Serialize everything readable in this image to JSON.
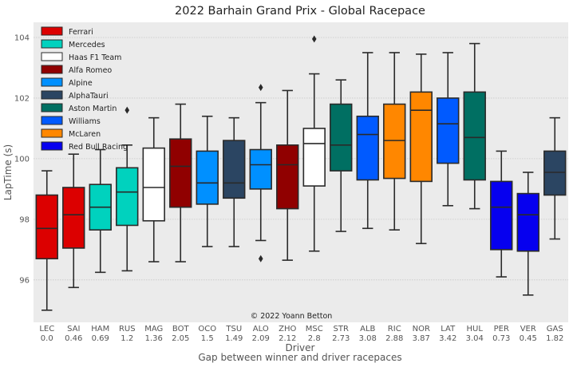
{
  "chart_data": {
    "type": "box",
    "title": "2022 Barhain Grand Prix - Global Racepace",
    "xlabel": "Driver",
    "xlabel_sub": "Gap between winner and driver racepaces",
    "ylabel": "LapTime (s)",
    "ylim": [
      94.6,
      104.5
    ],
    "yticks": [
      96,
      98,
      100,
      102,
      104
    ],
    "grid": true,
    "legend_placement": "top-left",
    "annotation": "© 2022 Yoann Betton",
    "teams": [
      {
        "name": "Ferrari",
        "color": "#DC0000"
      },
      {
        "name": "Mercedes",
        "color": "#00D2BE"
      },
      {
        "name": "Haas F1 Team",
        "color": "#FFFFFF"
      },
      {
        "name": "Alfa Romeo",
        "color": "#900000"
      },
      {
        "name": "Alpine",
        "color": "#0090FF"
      },
      {
        "name": "AlphaTauri",
        "color": "#2B4562"
      },
      {
        "name": "Aston Martin",
        "color": "#006F62"
      },
      {
        "name": "Williams",
        "color": "#005AFF"
      },
      {
        "name": "McLaren",
        "color": "#FF8700"
      },
      {
        "name": "Red Bull Racing",
        "color": "#0600EF"
      }
    ],
    "drivers": [
      {
        "code": "LEC",
        "gap": "0.0",
        "team": "Ferrari",
        "min": 95.0,
        "q1": 96.7,
        "median": 97.7,
        "q3": 98.8,
        "max": 99.6,
        "outliers": []
      },
      {
        "code": "SAI",
        "gap": "0.46",
        "team": "Ferrari",
        "min": 95.75,
        "q1": 97.05,
        "median": 98.15,
        "q3": 99.05,
        "max": 100.15,
        "outliers": []
      },
      {
        "code": "HAM",
        "gap": "0.69",
        "team": "Mercedes",
        "min": 96.25,
        "q1": 97.65,
        "median": 98.4,
        "q3": 99.15,
        "max": 100.3,
        "outliers": []
      },
      {
        "code": "RUS",
        "gap": "1.2",
        "team": "Mercedes",
        "min": 96.3,
        "q1": 97.8,
        "median": 98.9,
        "q3": 99.7,
        "max": 100.45,
        "outliers": [
          101.6
        ]
      },
      {
        "code": "MAG",
        "gap": "1.36",
        "team": "Haas F1 Team",
        "min": 96.6,
        "q1": 97.95,
        "median": 99.05,
        "q3": 100.35,
        "max": 101.35,
        "outliers": []
      },
      {
        "code": "BOT",
        "gap": "2.05",
        "team": "Alfa Romeo",
        "min": 96.6,
        "q1": 98.4,
        "median": 99.75,
        "q3": 100.65,
        "max": 101.8,
        "outliers": []
      },
      {
        "code": "OCO",
        "gap": "1.5",
        "team": "Alpine",
        "min": 97.1,
        "q1": 98.5,
        "median": 99.2,
        "q3": 100.25,
        "max": 101.4,
        "outliers": []
      },
      {
        "code": "TSU",
        "gap": "1.49",
        "team": "AlphaTauri",
        "min": 97.1,
        "q1": 98.7,
        "median": 99.2,
        "q3": 100.6,
        "max": 101.35,
        "outliers": []
      },
      {
        "code": "ALO",
        "gap": "2.09",
        "team": "Alpine",
        "min": 97.3,
        "q1": 99.0,
        "median": 99.8,
        "q3": 100.3,
        "max": 101.85,
        "outliers": [
          102.35,
          96.7
        ]
      },
      {
        "code": "ZHO",
        "gap": "2.12",
        "team": "Alfa Romeo",
        "min": 96.65,
        "q1": 98.35,
        "median": 99.8,
        "q3": 100.45,
        "max": 102.25,
        "outliers": []
      },
      {
        "code": "MSC",
        "gap": "2.8",
        "team": "Haas F1 Team",
        "min": 96.95,
        "q1": 99.1,
        "median": 100.5,
        "q3": 101.0,
        "max": 102.8,
        "outliers": [
          103.95
        ]
      },
      {
        "code": "STR",
        "gap": "2.73",
        "team": "Aston Martin",
        "min": 97.6,
        "q1": 99.6,
        "median": 100.45,
        "q3": 101.8,
        "max": 102.6,
        "outliers": []
      },
      {
        "code": "ALB",
        "gap": "3.08",
        "team": "Williams",
        "min": 97.7,
        "q1": 99.3,
        "median": 100.8,
        "q3": 101.4,
        "max": 103.5,
        "outliers": []
      },
      {
        "code": "RIC",
        "gap": "2.88",
        "team": "McLaren",
        "min": 97.65,
        "q1": 99.35,
        "median": 100.6,
        "q3": 101.8,
        "max": 103.5,
        "outliers": []
      },
      {
        "code": "NOR",
        "gap": "3.87",
        "team": "McLaren",
        "min": 97.2,
        "q1": 99.25,
        "median": 101.6,
        "q3": 102.2,
        "max": 103.45,
        "outliers": []
      },
      {
        "code": "LAT",
        "gap": "3.42",
        "team": "Williams",
        "min": 98.45,
        "q1": 99.85,
        "median": 101.15,
        "q3": 102.0,
        "max": 103.5,
        "outliers": []
      },
      {
        "code": "HUL",
        "gap": "3.04",
        "team": "Aston Martin",
        "min": 98.35,
        "q1": 99.3,
        "median": 100.7,
        "q3": 102.2,
        "max": 103.8,
        "outliers": []
      },
      {
        "code": "PER",
        "gap": "0.73",
        "team": "Red Bull Racing",
        "min": 96.1,
        "q1": 97.0,
        "median": 98.4,
        "q3": 99.25,
        "max": 100.25,
        "outliers": []
      },
      {
        "code": "VER",
        "gap": "0.45",
        "team": "Red Bull Racing",
        "min": 95.5,
        "q1": 96.95,
        "median": 98.15,
        "q3": 98.85,
        "max": 99.55,
        "outliers": []
      },
      {
        "code": "GAS",
        "gap": "1.82",
        "team": "AlphaTauri",
        "min": 97.35,
        "q1": 98.8,
        "median": 99.55,
        "q3": 100.25,
        "max": 101.35,
        "outliers": []
      }
    ]
  }
}
